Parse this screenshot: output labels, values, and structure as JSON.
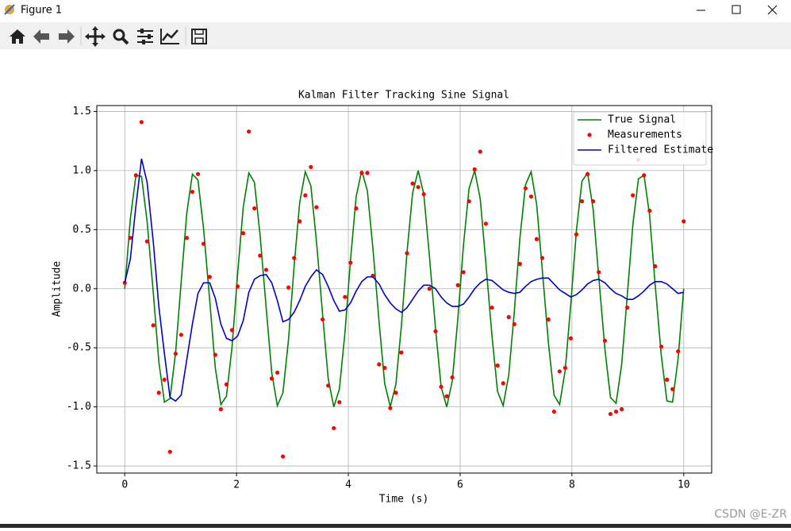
{
  "window": {
    "title": "Figure 1"
  },
  "chart_data": {
    "type": "line",
    "title": "Kalman Filter Tracking Sine Signal",
    "xlabel": "Time (s)",
    "ylabel": "Amplitude",
    "x": [
      0,
      0.1,
      0.2,
      0.3,
      0.4,
      0.51,
      0.61,
      0.71,
      0.81,
      0.91,
      1.01,
      1.11,
      1.21,
      1.31,
      1.41,
      1.52,
      1.62,
      1.72,
      1.82,
      1.92,
      2.02,
      2.12,
      2.22,
      2.32,
      2.42,
      2.53,
      2.63,
      2.73,
      2.83,
      2.93,
      3.03,
      3.13,
      3.23,
      3.33,
      3.43,
      3.54,
      3.64,
      3.74,
      3.84,
      3.94,
      4.04,
      4.14,
      4.24,
      4.34,
      4.44,
      4.55,
      4.65,
      4.75,
      4.85,
      4.95,
      5.05,
      5.15,
      5.25,
      5.35,
      5.45,
      5.56,
      5.66,
      5.76,
      5.86,
      5.96,
      6.06,
      6.16,
      6.26,
      6.36,
      6.46,
      6.57,
      6.67,
      6.77,
      6.87,
      6.97,
      7.07,
      7.17,
      7.27,
      7.37,
      7.47,
      7.58,
      7.68,
      7.78,
      7.88,
      7.98,
      8.08,
      8.18,
      8.28,
      8.38,
      8.48,
      8.59,
      8.69,
      8.79,
      8.89,
      8.99,
      9.09,
      9.19,
      9.29,
      9.39,
      9.49,
      9.6,
      9.7,
      9.8,
      9.9,
      10
    ],
    "series": [
      {
        "name": "True Signal",
        "type": "line",
        "color": "#008000",
        "values": [
          0,
          0.59,
          0.96,
          0.95,
          0.57,
          -0.03,
          -0.62,
          -0.96,
          -0.93,
          -0.54,
          0.06,
          0.64,
          0.97,
          0.92,
          0.51,
          -0.1,
          -0.67,
          -0.98,
          -0.91,
          -0.49,
          0.13,
          0.69,
          0.98,
          0.9,
          0.46,
          -0.16,
          -0.71,
          -0.99,
          -0.88,
          -0.43,
          0.19,
          0.73,
          0.99,
          0.87,
          0.4,
          -0.22,
          -0.76,
          -1,
          -0.85,
          -0.37,
          0.25,
          0.78,
          1,
          0.83,
          0.34,
          -0.28,
          -0.8,
          -1,
          -0.81,
          -0.31,
          0.31,
          0.81,
          1,
          0.8,
          0.28,
          -0.34,
          -0.83,
          -1,
          -0.78,
          -0.25,
          0.37,
          0.85,
          1,
          0.76,
          0.22,
          -0.4,
          -0.87,
          -0.99,
          -0.73,
          -0.19,
          0.43,
          0.88,
          0.99,
          0.71,
          0.16,
          -0.46,
          -0.9,
          -0.98,
          -0.69,
          -0.13,
          0.49,
          0.91,
          0.98,
          0.67,
          0.1,
          -0.51,
          -0.92,
          -0.97,
          -0.64,
          -0.06,
          0.54,
          0.93,
          0.96,
          0.62,
          0.03,
          -0.57,
          -0.95,
          -0.96,
          -0.59,
          0
        ]
      },
      {
        "name": "Measurements",
        "type": "scatter",
        "color": "#ff0000",
        "values": [
          0.05,
          0.43,
          0.96,
          1.41,
          0.4,
          -0.31,
          -0.88,
          -0.77,
          -1.38,
          -0.55,
          -0.39,
          0.43,
          0.82,
          0.97,
          0.38,
          0.1,
          -0.56,
          -1.02,
          -0.81,
          -0.35,
          0.02,
          0.47,
          1.33,
          0.68,
          0.28,
          0.16,
          -0.76,
          -0.71,
          -1.42,
          0.01,
          0.26,
          0.57,
          0.79,
          1.03,
          0.69,
          -0.26,
          -0.82,
          -1.18,
          -0.96,
          -0.07,
          0.22,
          0.68,
          0.98,
          0.98,
          0.11,
          -0.64,
          -0.67,
          -1.01,
          -0.88,
          -0.54,
          0.3,
          0.89,
          0.86,
          0.8,
          0,
          -0.36,
          -0.83,
          -0.91,
          -0.75,
          0.03,
          0.14,
          0.74,
          1.01,
          1.16,
          0.55,
          -0.16,
          -0.65,
          -0.8,
          -0.24,
          -0.3,
          0.21,
          0.85,
          0.78,
          0.42,
          0.26,
          -0.26,
          -1.04,
          -0.7,
          -0.67,
          -0.42,
          0.46,
          0.74,
          0.97,
          0.74,
          0.14,
          -0.44,
          -1.06,
          -1.04,
          -1.02,
          -0.16,
          0.79,
          1.09,
          0.96,
          0.66,
          0.19,
          -0.49,
          -0.77,
          -0.85,
          -0.53,
          0.57
        ]
      },
      {
        "name": "Filtered Estimate",
        "type": "line",
        "color": "#0000cc",
        "values": [
          0.05,
          0.25,
          0.7,
          1.1,
          0.9,
          0.4,
          -0.15,
          -0.55,
          -0.92,
          -0.95,
          -0.9,
          -0.6,
          -0.3,
          -0.04,
          0.05,
          0.05,
          -0.08,
          -0.3,
          -0.42,
          -0.44,
          -0.4,
          -0.27,
          -0.03,
          0.08,
          0.11,
          0.12,
          0.05,
          -0.1,
          -0.28,
          -0.26,
          -0.2,
          -0.1,
          0.02,
          0.1,
          0.16,
          0.12,
          0.02,
          -0.1,
          -0.19,
          -0.18,
          -0.12,
          -0.02,
          0.06,
          0.1,
          0.1,
          0.04,
          -0.05,
          -0.12,
          -0.17,
          -0.2,
          -0.16,
          -0.09,
          -0.02,
          0.03,
          0.03,
          0,
          -0.07,
          -0.12,
          -0.15,
          -0.15,
          -0.13,
          -0.07,
          0,
          0.05,
          0.08,
          0.07,
          0.03,
          -0.01,
          -0.03,
          -0.04,
          -0.03,
          0.02,
          0.06,
          0.08,
          0.09,
          0.09,
          0.04,
          -0.01,
          -0.04,
          -0.07,
          -0.05,
          -0.01,
          0.04,
          0.07,
          0.08,
          0.05,
          0,
          -0.04,
          -0.06,
          -0.09,
          -0.09,
          -0.06,
          -0.02,
          0.03,
          0.06,
          0.06,
          0.04,
          0,
          -0.04,
          -0.03
        ]
      }
    ],
    "xlim": [
      -0.5,
      10.5
    ],
    "ylim": [
      -1.56,
      1.55
    ],
    "xticks": [
      0,
      2,
      4,
      6,
      8,
      10
    ],
    "yticks": [
      -1.5,
      {
        "value": -1,
        "label": "-1.0"
      },
      -0.5,
      {
        "value": 0,
        "label": "0.0"
      },
      0.5,
      {
        "value": 1,
        "label": "1.0"
      },
      1.5
    ],
    "grid": true,
    "legend": "upper right"
  },
  "watermark": "CSDN @E-ZR"
}
